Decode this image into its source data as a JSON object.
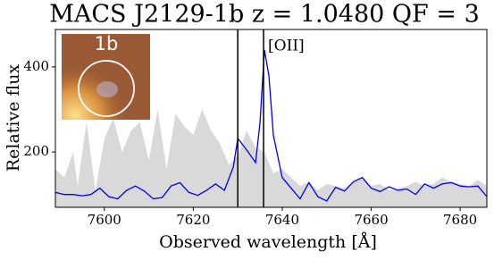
{
  "chart_data": {
    "type": "line",
    "title": "MACS J2129-1b z = 1.0480 QF = 3",
    "xlabel": "Observed wavelength  [Å]",
    "ylabel": "Relative flux",
    "inset_label": "1b",
    "annotations": [
      "[OII]"
    ],
    "xlim": [
      7589,
      7686
    ],
    "ylim": [
      70,
      488
    ],
    "xticks": [
      7600,
      7620,
      7640,
      7660,
      7680
    ],
    "yticks": [
      200,
      400
    ],
    "vlines": [
      7630,
      7635.8
    ],
    "series": [
      {
        "color": "#d9d9d9",
        "fill": true,
        "x": [
          7589,
          7591,
          7593,
          7594,
          7596,
          7598,
          7600,
          7602,
          7604,
          7606,
          7608,
          7610,
          7612,
          7614,
          7616,
          7618,
          7620,
          7622,
          7624,
          7626,
          7628,
          7630,
          7632,
          7634,
          7636,
          7638,
          7640,
          7642,
          7644,
          7646,
          7648,
          7650,
          7652,
          7654,
          7656,
          7658,
          7660,
          7662,
          7664,
          7666,
          7668,
          7670,
          7672,
          7674,
          7676,
          7678,
          7680,
          7682,
          7684,
          7686
        ],
        "values": [
          160,
          140,
          200,
          120,
          270,
          110,
          230,
          280,
          200,
          250,
          270,
          180,
          300,
          160,
          290,
          260,
          240,
          300,
          250,
          220,
          170,
          190,
          250,
          210,
          200,
          150,
          160,
          140,
          120,
          130,
          110,
          125,
          120,
          115,
          130,
          140,
          120,
          125,
          110,
          115,
          120,
          130,
          120,
          125,
          140,
          130,
          125,
          120,
          135,
          120
        ]
      },
      {
        "color": "#0000ee",
        "fill": false,
        "x": [
          7589,
          7591,
          7593,
          7595,
          7597,
          7599,
          7601,
          7603,
          7605,
          7607,
          7609,
          7611,
          7613,
          7615,
          7617,
          7619,
          7621,
          7623,
          7625,
          7627,
          7629,
          7630,
          7632,
          7634,
          7635,
          7636,
          7637,
          7638,
          7640,
          7642,
          7644,
          7646,
          7648,
          7650,
          7652,
          7654,
          7656,
          7658,
          7660,
          7662,
          7664,
          7666,
          7668,
          7670,
          7672,
          7674,
          7676,
          7678,
          7680,
          7682,
          7684,
          7686
        ],
        "values": [
          105,
          100,
          100,
          97,
          100,
          115,
          95,
          90,
          110,
          120,
          108,
          90,
          93,
          120,
          128,
          105,
          98,
          110,
          125,
          110,
          165,
          232,
          205,
          175,
          270,
          440,
          380,
          240,
          140,
          115,
          90,
          128,
          95,
          85,
          117,
          108,
          130,
          140,
          115,
          107,
          118,
          110,
          113,
          100,
          125,
          115,
          125,
          128,
          120,
          118,
          120,
          95
        ]
      }
    ]
  }
}
